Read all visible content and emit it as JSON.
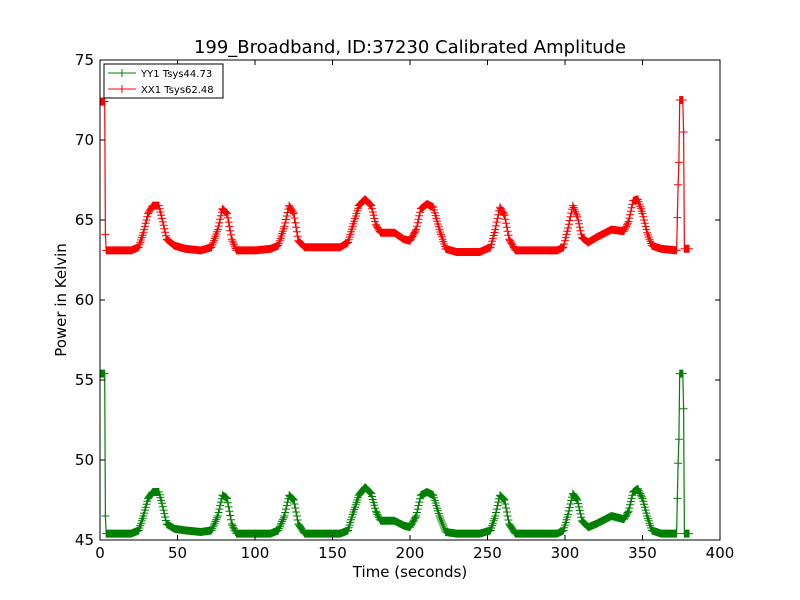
{
  "chart_data": {
    "type": "line",
    "title": "199_Broadband, ID:37230 Calibrated Amplitude",
    "xlabel": "Time (seconds)",
    "ylabel": "Power in Kelvin",
    "xlim": [
      0,
      400
    ],
    "ylim": [
      45,
      75
    ],
    "xticks": [
      0,
      50,
      100,
      150,
      200,
      250,
      300,
      350,
      400
    ],
    "yticks": [
      45,
      50,
      55,
      60,
      65,
      70,
      75
    ],
    "xtick_labels": [
      "0",
      "50",
      "100",
      "150",
      "200",
      "250",
      "300",
      "350",
      "400"
    ],
    "ytick_labels": [
      "45",
      "50",
      "55",
      "60",
      "65",
      "70",
      "75"
    ],
    "grid": false,
    "legend_position": "top-left",
    "marker": "+",
    "series": [
      {
        "name": "YY1 Tsys44.73",
        "color": "#008000",
        "points": [
          [
            0,
            55.4
          ],
          [
            1,
            55.4
          ],
          [
            2,
            55.4
          ],
          [
            3,
            55.4
          ],
          [
            3.5,
            46.5
          ],
          [
            4,
            45.4
          ],
          [
            10,
            45.4
          ],
          [
            20,
            45.4
          ],
          [
            25,
            45.6
          ],
          [
            28,
            46.5
          ],
          [
            31,
            47.6
          ],
          [
            34,
            48.0
          ],
          [
            38,
            48.0
          ],
          [
            40,
            47.3
          ],
          [
            43,
            46.0
          ],
          [
            48,
            45.7
          ],
          [
            55,
            45.6
          ],
          [
            65,
            45.5
          ],
          [
            72,
            45.6
          ],
          [
            76,
            46.5
          ],
          [
            79,
            47.8
          ],
          [
            82,
            47.6
          ],
          [
            85,
            46.0
          ],
          [
            88,
            45.4
          ],
          [
            100,
            45.4
          ],
          [
            110,
            45.4
          ],
          [
            115,
            45.6
          ],
          [
            119,
            46.5
          ],
          [
            122,
            47.8
          ],
          [
            125,
            47.5
          ],
          [
            128,
            46.0
          ],
          [
            132,
            45.4
          ],
          [
            145,
            45.4
          ],
          [
            155,
            45.4
          ],
          [
            160,
            45.6
          ],
          [
            163,
            46.6
          ],
          [
            167,
            47.8
          ],
          [
            171,
            48.3
          ],
          [
            175,
            47.9
          ],
          [
            178,
            46.8
          ],
          [
            181,
            46.2
          ],
          [
            190,
            46.2
          ],
          [
            196,
            45.9
          ],
          [
            200,
            45.8
          ],
          [
            204,
            46.5
          ],
          [
            207,
            47.8
          ],
          [
            211,
            48.0
          ],
          [
            215,
            47.8
          ],
          [
            219,
            46.5
          ],
          [
            223,
            45.5
          ],
          [
            230,
            45.4
          ],
          [
            245,
            45.4
          ],
          [
            252,
            45.6
          ],
          [
            255,
            46.5
          ],
          [
            258,
            47.8
          ],
          [
            261,
            47.5
          ],
          [
            264,
            46.0
          ],
          [
            268,
            45.4
          ],
          [
            280,
            45.4
          ],
          [
            295,
            45.4
          ],
          [
            299,
            45.6
          ],
          [
            302,
            46.6
          ],
          [
            305,
            47.9
          ],
          [
            308,
            47.5
          ],
          [
            311,
            46.2
          ],
          [
            315,
            45.8
          ],
          [
            320,
            46.0
          ],
          [
            330,
            46.5
          ],
          [
            338,
            46.3
          ],
          [
            341,
            46.8
          ],
          [
            344,
            48.0
          ],
          [
            347,
            48.2
          ],
          [
            350,
            47.6
          ],
          [
            353,
            46.5
          ],
          [
            356,
            45.6
          ],
          [
            362,
            45.4
          ],
          [
            372,
            45.4
          ],
          [
            373,
            49.8
          ],
          [
            373.5,
            51.3
          ],
          [
            374,
            55.4
          ],
          [
            375,
            55.4
          ],
          [
            376,
            55.4
          ],
          [
            376.5,
            53.2
          ],
          [
            377,
            45.4
          ],
          [
            380,
            45.4
          ]
        ]
      },
      {
        "name": "XX1 Tsys62.48",
        "color": "#ff0000",
        "points": [
          [
            0,
            72.4
          ],
          [
            1,
            72.4
          ],
          [
            2,
            72.4
          ],
          [
            3,
            72.4
          ],
          [
            3.5,
            64.1
          ],
          [
            4,
            63.1
          ],
          [
            10,
            63.1
          ],
          [
            20,
            63.1
          ],
          [
            25,
            63.3
          ],
          [
            28,
            64.2
          ],
          [
            31,
            65.4
          ],
          [
            34,
            65.9
          ],
          [
            38,
            65.9
          ],
          [
            40,
            65.1
          ],
          [
            43,
            63.8
          ],
          [
            48,
            63.4
          ],
          [
            55,
            63.2
          ],
          [
            65,
            63.1
          ],
          [
            72,
            63.3
          ],
          [
            76,
            64.4
          ],
          [
            79,
            65.7
          ],
          [
            82,
            65.4
          ],
          [
            85,
            63.8
          ],
          [
            88,
            63.1
          ],
          [
            100,
            63.1
          ],
          [
            110,
            63.2
          ],
          [
            115,
            63.4
          ],
          [
            119,
            64.6
          ],
          [
            122,
            65.9
          ],
          [
            125,
            65.4
          ],
          [
            128,
            63.7
          ],
          [
            132,
            63.3
          ],
          [
            145,
            63.3
          ],
          [
            155,
            63.3
          ],
          [
            160,
            63.6
          ],
          [
            163,
            64.6
          ],
          [
            167,
            65.9
          ],
          [
            171,
            66.3
          ],
          [
            175,
            65.9
          ],
          [
            178,
            64.7
          ],
          [
            181,
            64.2
          ],
          [
            190,
            64.2
          ],
          [
            196,
            63.8
          ],
          [
            200,
            63.7
          ],
          [
            204,
            64.4
          ],
          [
            207,
            65.7
          ],
          [
            211,
            66.0
          ],
          [
            215,
            65.8
          ],
          [
            219,
            64.4
          ],
          [
            223,
            63.2
          ],
          [
            230,
            63.0
          ],
          [
            245,
            63.0
          ],
          [
            252,
            63.3
          ],
          [
            255,
            64.4
          ],
          [
            258,
            65.8
          ],
          [
            261,
            65.3
          ],
          [
            264,
            63.8
          ],
          [
            268,
            63.1
          ],
          [
            280,
            63.1
          ],
          [
            295,
            63.1
          ],
          [
            299,
            63.3
          ],
          [
            302,
            64.5
          ],
          [
            305,
            65.9
          ],
          [
            308,
            65.2
          ],
          [
            311,
            63.9
          ],
          [
            315,
            63.6
          ],
          [
            320,
            63.9
          ],
          [
            330,
            64.4
          ],
          [
            338,
            64.3
          ],
          [
            341,
            64.9
          ],
          [
            344,
            66.2
          ],
          [
            347,
            66.3
          ],
          [
            350,
            65.4
          ],
          [
            353,
            64.2
          ],
          [
            356,
            63.4
          ],
          [
            362,
            63.2
          ],
          [
            372,
            63.1
          ],
          [
            373,
            67.2
          ],
          [
            373.5,
            68.6
          ],
          [
            374,
            72.5
          ],
          [
            375,
            72.5
          ],
          [
            376,
            72.5
          ],
          [
            376.5,
            70.5
          ],
          [
            377,
            63.2
          ],
          [
            380,
            63.2
          ]
        ]
      }
    ]
  }
}
